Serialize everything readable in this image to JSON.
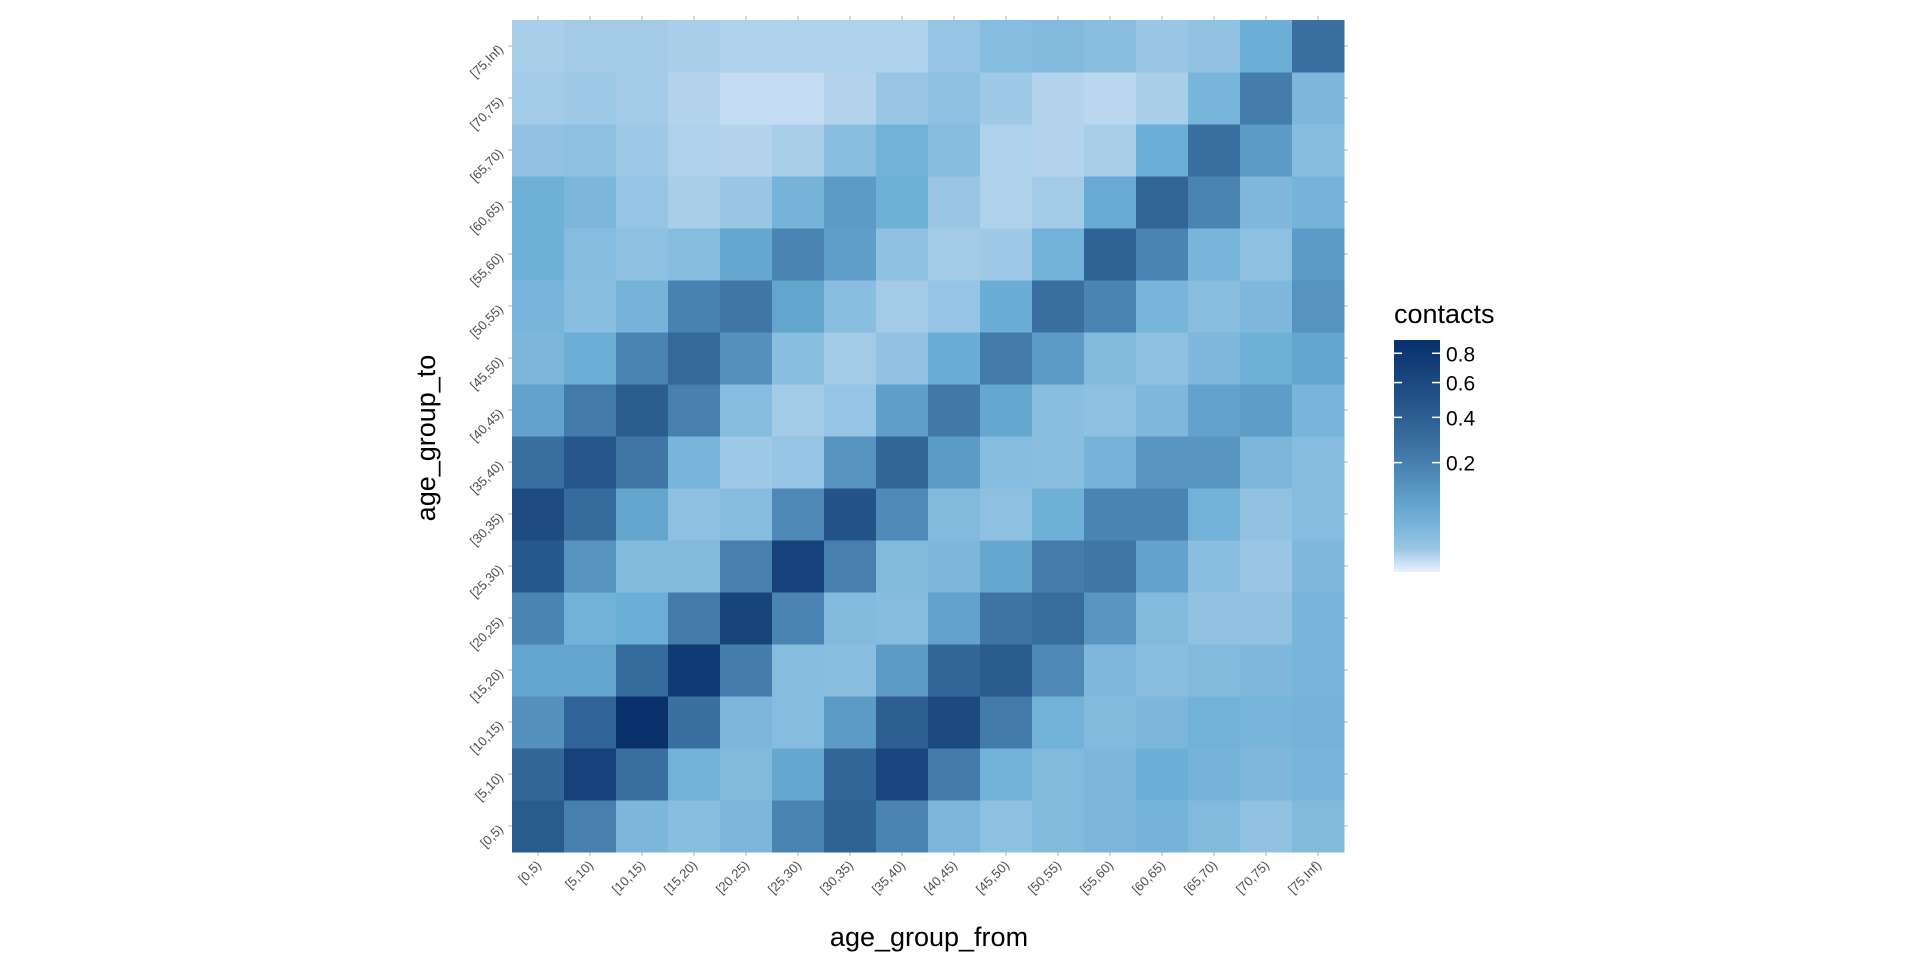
{
  "chart_data": {
    "type": "heatmap",
    "xlabel": "age_group_from",
    "ylabel": "age_group_to",
    "categories_x": [
      "[0,5)",
      "[5,10)",
      "[10,15)",
      "[15,20)",
      "[20,25)",
      "[25,30)",
      "[30,35)",
      "[35,40)",
      "[40,45)",
      "[45,50)",
      "[50,55)",
      "[55,60)",
      "[60,65)",
      "[65,70)",
      "[70,75)",
      "[75,Inf)"
    ],
    "categories_y": [
      "[0,5)",
      "[5,10)",
      "[10,15)",
      "[15,20)",
      "[20,25)",
      "[25,30)",
      "[30,35)",
      "[35,40)",
      "[40,45)",
      "[45,50)",
      "[50,55)",
      "[55,60)",
      "[60,65)",
      "[65,70)",
      "[70,75)",
      "[75,Inf)"
    ],
    "values": [
      [
        0.62,
        0.42,
        0.17,
        0.13,
        0.17,
        0.4,
        0.58,
        0.4,
        0.17,
        0.12,
        0.15,
        0.17,
        0.19,
        0.15,
        0.11,
        0.15
      ],
      [
        0.55,
        0.78,
        0.5,
        0.2,
        0.15,
        0.25,
        0.55,
        0.75,
        0.45,
        0.2,
        0.15,
        0.17,
        0.22,
        0.19,
        0.16,
        0.18
      ],
      [
        0.34,
        0.57,
        0.9,
        0.5,
        0.17,
        0.14,
        0.3,
        0.6,
        0.73,
        0.45,
        0.2,
        0.15,
        0.17,
        0.2,
        0.18,
        0.19
      ],
      [
        0.26,
        0.26,
        0.53,
        0.83,
        0.43,
        0.14,
        0.13,
        0.3,
        0.55,
        0.62,
        0.38,
        0.16,
        0.13,
        0.15,
        0.16,
        0.18
      ],
      [
        0.4,
        0.2,
        0.22,
        0.45,
        0.76,
        0.4,
        0.15,
        0.14,
        0.27,
        0.48,
        0.52,
        0.32,
        0.15,
        0.11,
        0.11,
        0.18
      ],
      [
        0.63,
        0.33,
        0.15,
        0.15,
        0.42,
        0.78,
        0.42,
        0.15,
        0.17,
        0.25,
        0.44,
        0.47,
        0.27,
        0.13,
        0.09,
        0.16
      ],
      [
        0.72,
        0.53,
        0.26,
        0.12,
        0.14,
        0.38,
        0.67,
        0.37,
        0.15,
        0.12,
        0.21,
        0.4,
        0.4,
        0.2,
        0.11,
        0.14
      ],
      [
        0.5,
        0.65,
        0.47,
        0.18,
        0.08,
        0.1,
        0.33,
        0.55,
        0.3,
        0.14,
        0.13,
        0.19,
        0.32,
        0.32,
        0.17,
        0.14
      ],
      [
        0.27,
        0.45,
        0.61,
        0.42,
        0.14,
        0.07,
        0.1,
        0.28,
        0.46,
        0.25,
        0.13,
        0.12,
        0.16,
        0.27,
        0.29,
        0.18
      ],
      [
        0.17,
        0.22,
        0.4,
        0.54,
        0.34,
        0.13,
        0.07,
        0.11,
        0.23,
        0.45,
        0.3,
        0.15,
        0.12,
        0.16,
        0.21,
        0.26
      ],
      [
        0.18,
        0.13,
        0.19,
        0.41,
        0.47,
        0.26,
        0.13,
        0.07,
        0.1,
        0.23,
        0.51,
        0.4,
        0.18,
        0.13,
        0.16,
        0.33
      ],
      [
        0.21,
        0.14,
        0.12,
        0.14,
        0.25,
        0.4,
        0.28,
        0.12,
        0.07,
        0.08,
        0.2,
        0.58,
        0.4,
        0.18,
        0.12,
        0.3
      ],
      [
        0.21,
        0.17,
        0.1,
        0.06,
        0.09,
        0.19,
        0.3,
        0.21,
        0.09,
        0.05,
        0.07,
        0.24,
        0.56,
        0.4,
        0.16,
        0.19
      ],
      [
        0.11,
        0.12,
        0.08,
        0.05,
        0.04,
        0.06,
        0.13,
        0.2,
        0.14,
        0.05,
        0.04,
        0.06,
        0.22,
        0.5,
        0.3,
        0.14
      ],
      [
        0.07,
        0.08,
        0.07,
        0.04,
        0.02,
        0.02,
        0.04,
        0.09,
        0.12,
        0.08,
        0.04,
        0.03,
        0.06,
        0.18,
        0.44,
        0.17
      ],
      [
        0.06,
        0.07,
        0.07,
        0.06,
        0.05,
        0.05,
        0.05,
        0.05,
        0.1,
        0.14,
        0.15,
        0.13,
        0.09,
        0.11,
        0.22,
        0.5
      ]
    ],
    "legend": {
      "title": "contacts",
      "breaks": [
        0.8,
        0.6,
        0.4,
        0.2
      ],
      "labels": [
        "0.8",
        "0.6",
        "0.4",
        "0.2"
      ],
      "range": [
        0,
        0.9
      ],
      "scale": "sqrt",
      "position": "right"
    },
    "colors": {
      "low": "#eaf0ff",
      "high": "#08306b"
    },
    "grid": false
  }
}
